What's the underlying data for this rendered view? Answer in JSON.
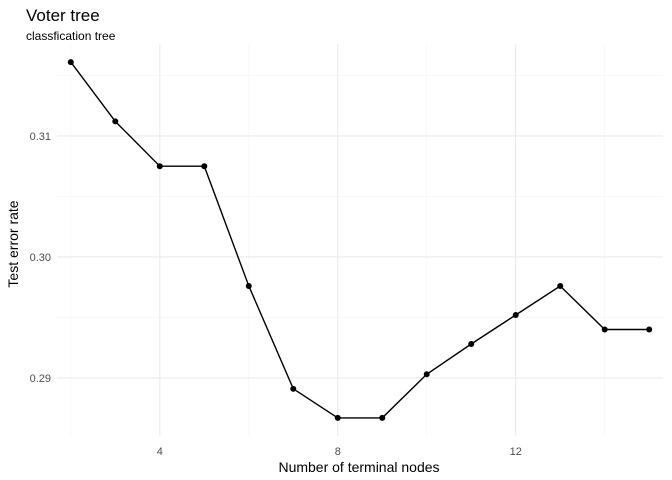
{
  "chart_data": {
    "type": "line",
    "title": "Voter tree",
    "subtitle": "classfication tree",
    "xlabel": "Number of terminal nodes",
    "ylabel": "Test error rate",
    "x": [
      2,
      3,
      4,
      5,
      6,
      7,
      8,
      9,
      10,
      11,
      12,
      13,
      14,
      15
    ],
    "y": [
      0.3161,
      0.3112,
      0.3075,
      0.3075,
      0.2976,
      0.2891,
      0.2867,
      0.2867,
      0.2903,
      0.2928,
      0.2952,
      0.2976,
      0.294,
      0.294
    ],
    "xlim": [
      1.69,
      15.31
    ],
    "ylim": [
      0.2852,
      0.3176
    ],
    "x_ticks": [
      4,
      8,
      12
    ],
    "x_tick_labels": [
      "4",
      "8",
      "12"
    ],
    "y_ticks": [
      0.29,
      0.3,
      0.31
    ],
    "y_tick_labels": [
      "0.29",
      "0.30",
      "0.31"
    ],
    "x_minor_ticks": [
      2,
      6,
      10,
      14
    ],
    "y_minor_ticks": [
      0.295,
      0.305,
      0.315
    ],
    "grid": true,
    "legend": "none",
    "colors": {
      "line": "#000000",
      "point": "#000000",
      "grid": "#ebebeb",
      "background": "#ffffff"
    }
  }
}
